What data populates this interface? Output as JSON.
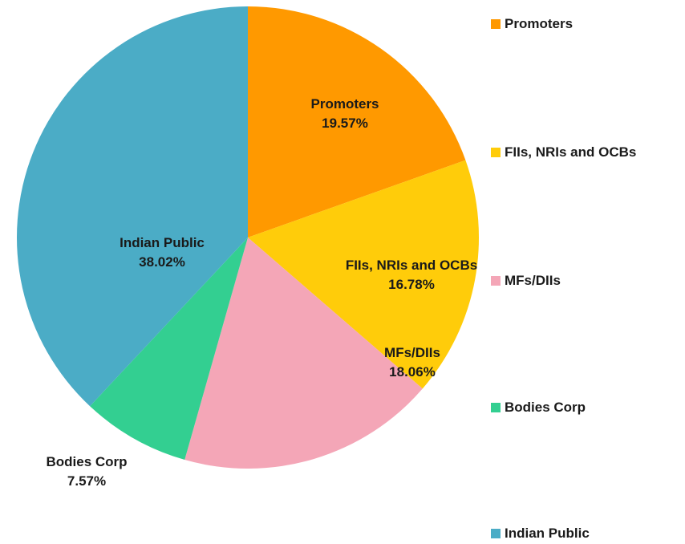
{
  "chart_data": {
    "type": "pie",
    "categories": [
      "Promoters",
      "FIIs, NRIs and OCBs",
      "MFs/DIIs",
      "Bodies Corp",
      "Indian Public"
    ],
    "values": [
      19.57,
      16.78,
      18.06,
      7.57,
      38.02
    ],
    "value_labels": [
      "19.57%",
      "16.78%",
      "18.06%",
      "7.57%",
      "38.02%"
    ],
    "colors": [
      "#ff9900",
      "#ffcc0a",
      "#f4a6b7",
      "#33cf91",
      "#4bacc6"
    ],
    "legend": "right"
  }
}
